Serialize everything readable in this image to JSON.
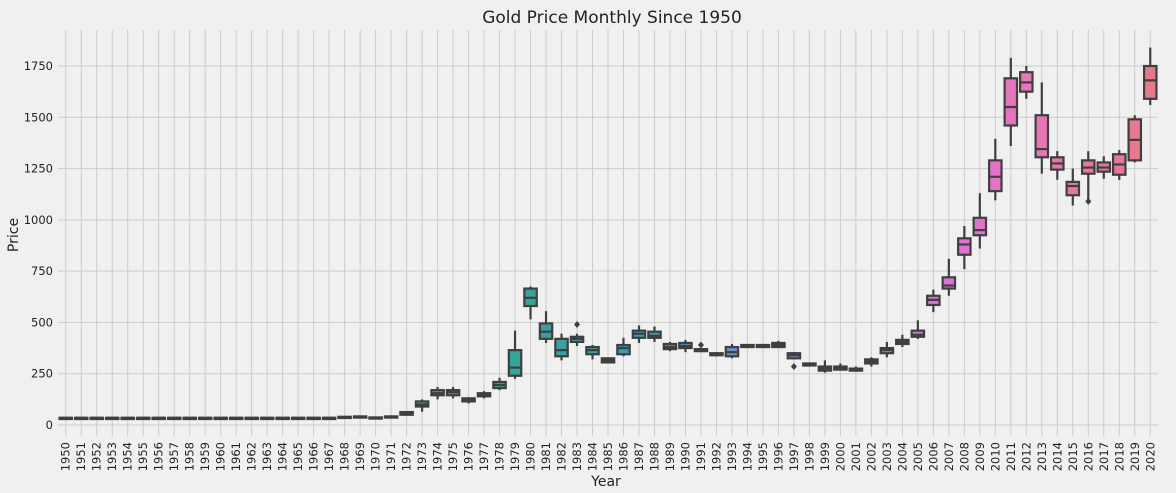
{
  "chart_data": {
    "type": "box",
    "title": "Gold Price Monthly Since 1950",
    "xlabel": "Year",
    "ylabel": "Price",
    "ylim": [
      -25,
      1875
    ],
    "yticks": [
      0,
      250,
      500,
      750,
      1000,
      1250,
      1500,
      1750
    ],
    "grid": true,
    "categories": [
      "1950",
      "1951",
      "1952",
      "1953",
      "1954",
      "1955",
      "1956",
      "1957",
      "1958",
      "1959",
      "1960",
      "1961",
      "1962",
      "1963",
      "1964",
      "1965",
      "1966",
      "1967",
      "1968",
      "1969",
      "1970",
      "1971",
      "1972",
      "1973",
      "1974",
      "1975",
      "1976",
      "1977",
      "1978",
      "1979",
      "1980",
      "1981",
      "1982",
      "1983",
      "1984",
      "1985",
      "1986",
      "1987",
      "1988",
      "1989",
      "1990",
      "1991",
      "1992",
      "1993",
      "1994",
      "1995",
      "1996",
      "1997",
      "1998",
      "1999",
      "2000",
      "2001",
      "2002",
      "2003",
      "2004",
      "2005",
      "2006",
      "2007",
      "2008",
      "2009",
      "2010",
      "2011",
      "2012",
      "2013",
      "2014",
      "2015",
      "2016",
      "2017",
      "2018",
      "2019",
      "2020"
    ],
    "boxes": [
      {
        "min": 34,
        "q1": 34,
        "median": 35,
        "q3": 35,
        "max": 36,
        "fliers": []
      },
      {
        "min": 34,
        "q1": 34,
        "median": 35,
        "q3": 35,
        "max": 36,
        "fliers": []
      },
      {
        "min": 34,
        "q1": 34,
        "median": 35,
        "q3": 35,
        "max": 36,
        "fliers": []
      },
      {
        "min": 34,
        "q1": 34,
        "median": 35,
        "q3": 35,
        "max": 36,
        "fliers": []
      },
      {
        "min": 34,
        "q1": 34,
        "median": 35,
        "q3": 35,
        "max": 36,
        "fliers": []
      },
      {
        "min": 34,
        "q1": 34,
        "median": 35,
        "q3": 35,
        "max": 36,
        "fliers": []
      },
      {
        "min": 34,
        "q1": 34,
        "median": 35,
        "q3": 35,
        "max": 36,
        "fliers": []
      },
      {
        "min": 34,
        "q1": 34,
        "median": 35,
        "q3": 35,
        "max": 36,
        "fliers": []
      },
      {
        "min": 34,
        "q1": 34,
        "median": 35,
        "q3": 35,
        "max": 36,
        "fliers": []
      },
      {
        "min": 34,
        "q1": 34,
        "median": 35,
        "q3": 35,
        "max": 36,
        "fliers": []
      },
      {
        "min": 34,
        "q1": 34,
        "median": 35,
        "q3": 35,
        "max": 36,
        "fliers": []
      },
      {
        "min": 34,
        "q1": 34,
        "median": 35,
        "q3": 35,
        "max": 36,
        "fliers": []
      },
      {
        "min": 34,
        "q1": 34,
        "median": 35,
        "q3": 35,
        "max": 36,
        "fliers": []
      },
      {
        "min": 34,
        "q1": 34,
        "median": 35,
        "q3": 35,
        "max": 36,
        "fliers": []
      },
      {
        "min": 34,
        "q1": 34,
        "median": 35,
        "q3": 35,
        "max": 36,
        "fliers": []
      },
      {
        "min": 34,
        "q1": 34,
        "median": 35,
        "q3": 35,
        "max": 36,
        "fliers": []
      },
      {
        "min": 34,
        "q1": 34,
        "median": 35,
        "q3": 35,
        "max": 36,
        "fliers": []
      },
      {
        "min": 34,
        "q1": 34,
        "median": 35,
        "q3": 35,
        "max": 36,
        "fliers": []
      },
      {
        "min": 35,
        "q1": 37,
        "median": 38,
        "q3": 40,
        "max": 42,
        "fliers": []
      },
      {
        "min": 35,
        "q1": 40,
        "median": 41,
        "q3": 42,
        "max": 44,
        "fliers": []
      },
      {
        "min": 35,
        "q1": 36,
        "median": 36,
        "q3": 37,
        "max": 38,
        "fliers": []
      },
      {
        "min": 38,
        "q1": 39,
        "median": 40,
        "q3": 42,
        "max": 44,
        "fliers": []
      },
      {
        "min": 46,
        "q1": 50,
        "median": 58,
        "q3": 63,
        "max": 66,
        "fliers": []
      },
      {
        "min": 65,
        "q1": 90,
        "median": 100,
        "q3": 115,
        "max": 125,
        "fliers": []
      },
      {
        "min": 125,
        "q1": 145,
        "median": 155,
        "q3": 170,
        "max": 185,
        "fliers": []
      },
      {
        "min": 130,
        "q1": 145,
        "median": 160,
        "q3": 170,
        "max": 185,
        "fliers": []
      },
      {
        "min": 105,
        "q1": 115,
        "median": 125,
        "q3": 130,
        "max": 135,
        "fliers": []
      },
      {
        "min": 130,
        "q1": 140,
        "median": 145,
        "q3": 155,
        "max": 165,
        "fliers": []
      },
      {
        "min": 170,
        "q1": 180,
        "median": 195,
        "q3": 210,
        "max": 230,
        "fliers": []
      },
      {
        "min": 225,
        "q1": 240,
        "median": 280,
        "q3": 365,
        "max": 460,
        "fliers": []
      },
      {
        "min": 515,
        "q1": 580,
        "median": 620,
        "q3": 665,
        "max": 675,
        "fliers": []
      },
      {
        "min": 400,
        "q1": 420,
        "median": 455,
        "q3": 495,
        "max": 555,
        "fliers": []
      },
      {
        "min": 315,
        "q1": 335,
        "median": 365,
        "q3": 420,
        "max": 445,
        "fliers": []
      },
      {
        "min": 385,
        "q1": 405,
        "median": 420,
        "q3": 430,
        "max": 445,
        "fliers": [
          490
        ]
      },
      {
        "min": 320,
        "q1": 345,
        "median": 365,
        "q3": 380,
        "max": 390,
        "fliers": []
      },
      {
        "min": 300,
        "q1": 305,
        "median": 315,
        "q3": 325,
        "max": 330,
        "fliers": []
      },
      {
        "min": 335,
        "q1": 345,
        "median": 375,
        "q3": 390,
        "max": 425,
        "fliers": []
      },
      {
        "min": 400,
        "q1": 425,
        "median": 445,
        "q3": 460,
        "max": 485,
        "fliers": []
      },
      {
        "min": 405,
        "q1": 425,
        "median": 435,
        "q3": 455,
        "max": 480,
        "fliers": []
      },
      {
        "min": 360,
        "q1": 370,
        "median": 380,
        "q3": 395,
        "max": 405,
        "fliers": []
      },
      {
        "min": 355,
        "q1": 375,
        "median": 385,
        "q3": 400,
        "max": 415,
        "fliers": []
      },
      {
        "min": 355,
        "q1": 360,
        "median": 365,
        "q3": 370,
        "max": 375,
        "fliers": [
          390
        ]
      },
      {
        "min": 335,
        "q1": 340,
        "median": 345,
        "q3": 350,
        "max": 355,
        "fliers": []
      },
      {
        "min": 325,
        "q1": 335,
        "median": 355,
        "q3": 380,
        "max": 395,
        "fliers": []
      },
      {
        "min": 375,
        "q1": 380,
        "median": 385,
        "q3": 390,
        "max": 395,
        "fliers": []
      },
      {
        "min": 375,
        "q1": 380,
        "median": 385,
        "q3": 390,
        "max": 395,
        "fliers": []
      },
      {
        "min": 375,
        "q1": 380,
        "median": 390,
        "q3": 400,
        "max": 410,
        "fliers": []
      },
      {
        "min": 320,
        "q1": 325,
        "median": 340,
        "q3": 350,
        "max": 355,
        "fliers": [
          285
        ]
      },
      {
        "min": 285,
        "q1": 290,
        "median": 295,
        "q3": 300,
        "max": 305,
        "fliers": []
      },
      {
        "min": 255,
        "q1": 265,
        "median": 275,
        "q3": 285,
        "max": 315,
        "fliers": []
      },
      {
        "min": 265,
        "q1": 270,
        "median": 280,
        "q3": 285,
        "max": 300,
        "fliers": []
      },
      {
        "min": 260,
        "q1": 265,
        "median": 270,
        "q3": 275,
        "max": 285,
        "fliers": []
      },
      {
        "min": 285,
        "q1": 300,
        "median": 310,
        "q3": 320,
        "max": 330,
        "fliers": []
      },
      {
        "min": 330,
        "q1": 350,
        "median": 365,
        "q3": 375,
        "max": 405,
        "fliers": []
      },
      {
        "min": 380,
        "q1": 395,
        "median": 405,
        "q3": 415,
        "max": 440,
        "fliers": []
      },
      {
        "min": 420,
        "q1": 430,
        "median": 440,
        "q3": 460,
        "max": 510,
        "fliers": []
      },
      {
        "min": 550,
        "q1": 585,
        "median": 610,
        "q3": 630,
        "max": 660,
        "fliers": []
      },
      {
        "min": 630,
        "q1": 665,
        "median": 680,
        "q3": 720,
        "max": 810,
        "fliers": []
      },
      {
        "min": 760,
        "q1": 830,
        "median": 880,
        "q3": 910,
        "max": 970,
        "fliers": []
      },
      {
        "min": 860,
        "q1": 925,
        "median": 950,
        "q3": 1010,
        "max": 1130,
        "fliers": []
      },
      {
        "min": 1095,
        "q1": 1140,
        "median": 1210,
        "q3": 1290,
        "max": 1395,
        "fliers": []
      },
      {
        "min": 1360,
        "q1": 1460,
        "median": 1550,
        "q3": 1690,
        "max": 1790,
        "fliers": []
      },
      {
        "min": 1590,
        "q1": 1625,
        "median": 1670,
        "q3": 1720,
        "max": 1750,
        "fliers": []
      },
      {
        "min": 1225,
        "q1": 1305,
        "median": 1345,
        "q3": 1510,
        "max": 1670,
        "fliers": []
      },
      {
        "min": 1195,
        "q1": 1245,
        "median": 1275,
        "q3": 1305,
        "max": 1335,
        "fliers": []
      },
      {
        "min": 1070,
        "q1": 1120,
        "median": 1165,
        "q3": 1185,
        "max": 1250,
        "fliers": []
      },
      {
        "min": 1095,
        "q1": 1225,
        "median": 1255,
        "q3": 1290,
        "max": 1335,
        "fliers": [
          1090
        ]
      },
      {
        "min": 1200,
        "q1": 1235,
        "median": 1255,
        "q3": 1280,
        "max": 1310,
        "fliers": []
      },
      {
        "min": 1195,
        "q1": 1220,
        "median": 1270,
        "q3": 1320,
        "max": 1340,
        "fliers": []
      },
      {
        "min": 1280,
        "q1": 1290,
        "median": 1390,
        "q3": 1490,
        "max": 1510,
        "fliers": []
      },
      {
        "min": 1560,
        "q1": 1590,
        "median": 1680,
        "q3": 1750,
        "max": 1840,
        "fliers": []
      }
    ],
    "palette": [
      "#e5ae38",
      "#b8b333",
      "#7db34a",
      "#43b36b",
      "#34a98b",
      "#38a1a0",
      "#3a98bb",
      "#7a8fd6",
      "#b084e0",
      "#e072d5",
      "#e876b0",
      "#e77a8a"
    ]
  }
}
